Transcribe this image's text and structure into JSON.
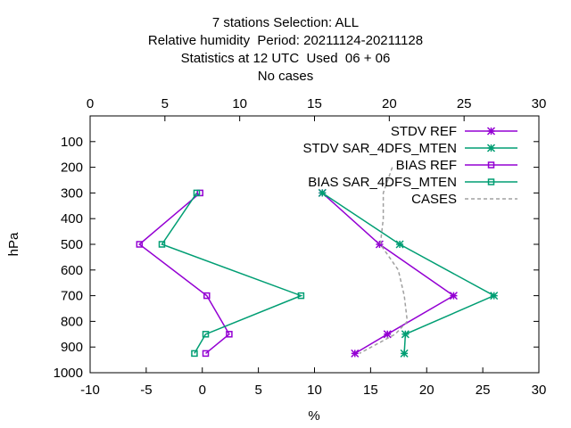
{
  "title_lines": [
    "7 stations Selection: ALL",
    "Relative humidity  Period: 20211124-20211128",
    "Statistics at 12 UTC  Used  06 + 06",
    "No cases"
  ],
  "chart_data": {
    "type": "line",
    "xlabel": "%",
    "ylabel": "hPa",
    "xlim": [
      -10,
      30
    ],
    "x2lim": [
      0,
      30
    ],
    "ylim": [
      1000,
      0
    ],
    "y_reversed": true,
    "x_ticks": [
      "-10",
      "-5",
      "0",
      "5",
      "10",
      "15",
      "20",
      "25",
      "30"
    ],
    "x2_ticks": [
      "0",
      "5",
      "10",
      "15",
      "20",
      "25",
      "30"
    ],
    "y_ticks": [
      "100",
      "200",
      "300",
      "400",
      "500",
      "600",
      "700",
      "800",
      "900",
      "1000"
    ],
    "grid": false,
    "legend_position": "top-right",
    "series": [
      {
        "name": "STDV REF",
        "marker": "star",
        "color": "#9400d3",
        "x": [
          10.7,
          15.8,
          22.4,
          16.5,
          13.6
        ],
        "y": [
          300,
          500,
          700,
          850,
          925
        ]
      },
      {
        "name": "STDV SAR_4DFS_MTEN",
        "marker": "star",
        "color": "#009e73",
        "x": [
          10.7,
          17.6,
          26.0,
          18.1,
          18.0
        ],
        "y": [
          300,
          500,
          700,
          850,
          925
        ]
      },
      {
        "name": "BIAS REF",
        "marker": "square",
        "color": "#9400d3",
        "x": [
          -0.2,
          -5.6,
          0.4,
          2.4,
          0.3
        ],
        "y": [
          300,
          500,
          700,
          850,
          925
        ]
      },
      {
        "name": "BIAS SAR_4DFS_MTEN",
        "marker": "square",
        "color": "#009e73",
        "x": [
          -0.5,
          -3.6,
          8.8,
          0.3,
          -0.7
        ],
        "y": [
          300,
          500,
          700,
          850,
          925
        ]
      },
      {
        "name": "CASES",
        "marker": "none",
        "color": "#a0a0a0",
        "dashed": true,
        "axis": "x2",
        "x": [
          20.2,
          19.6,
          19.6,
          19.4,
          20.6,
          21.0,
          21.2,
          20.4,
          18.0
        ],
        "y": [
          200,
          300,
          400,
          500,
          600,
          700,
          800,
          850,
          925
        ]
      }
    ]
  }
}
